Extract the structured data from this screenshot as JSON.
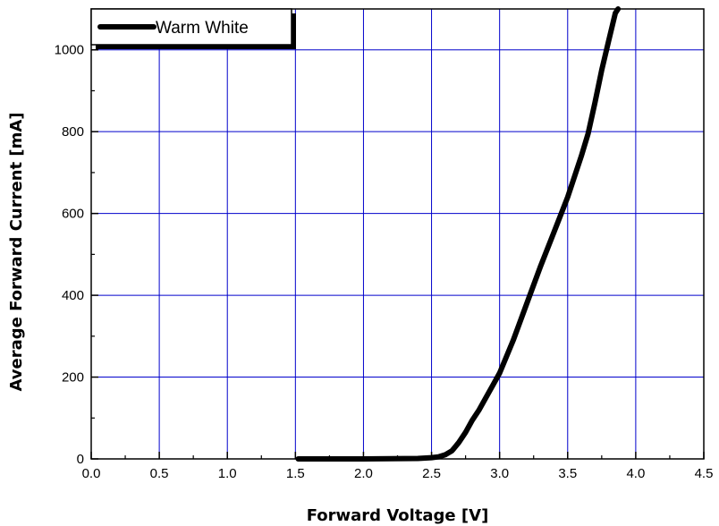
{
  "chart_data": {
    "type": "line",
    "xlabel": "Forward Voltage [V]",
    "ylabel": "Average Forward Current [mA]",
    "xlim": [
      0.0,
      4.5
    ],
    "ylim": [
      0,
      1100
    ],
    "x_ticks": [
      "0.0",
      "0.5",
      "1.0",
      "1.5",
      "2.0",
      "2.5",
      "3.0",
      "3.5",
      "4.0",
      "4.5"
    ],
    "y_ticks": [
      "0",
      "200",
      "400",
      "600",
      "800",
      "1000"
    ],
    "grid": true,
    "grid_color": "#0000cc",
    "legend_position": "top-left",
    "series": [
      {
        "name": "Warm White",
        "color": "#000000",
        "x": [
          1.52,
          2.0,
          2.4,
          2.5,
          2.55,
          2.6,
          2.65,
          2.7,
          2.75,
          2.8,
          2.85,
          2.9,
          2.95,
          3.0,
          3.1,
          3.2,
          3.3,
          3.4,
          3.5,
          3.6,
          3.65,
          3.7,
          3.75,
          3.8,
          3.85,
          3.87
        ],
        "y": [
          0,
          0,
          1,
          3,
          5,
          10,
          20,
          40,
          65,
          95,
          120,
          150,
          180,
          210,
          290,
          380,
          470,
          555,
          640,
          740,
          795,
          870,
          950,
          1020,
          1090,
          1100
        ]
      }
    ]
  }
}
